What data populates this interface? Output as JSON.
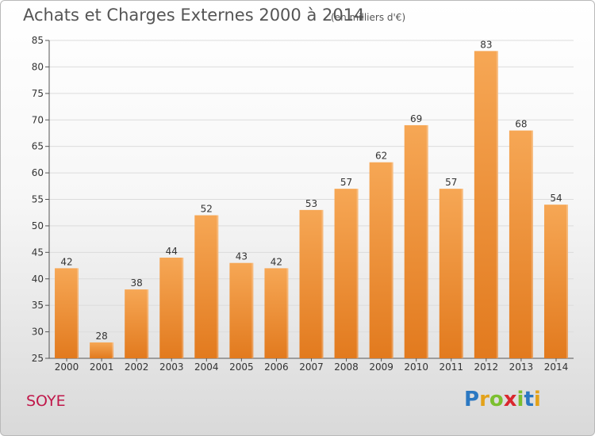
{
  "title": "Achats et Charges Externes 2000 à 2014",
  "subtitle": "(en milliers d'€)",
  "commune": "SOYE",
  "brand": {
    "letters": [
      "P",
      "r",
      "o",
      "x",
      "i",
      "t",
      "i"
    ],
    "colors": [
      "#2b78c2",
      "#e3a21a",
      "#7bbf2f",
      "#d9272e",
      "#7bbf2f",
      "#2b78c2",
      "#e3a21a"
    ]
  },
  "colors": {
    "bar_top": "#f6a755",
    "bar_bottom": "#e27a1e",
    "grid": "#dcdcdc",
    "axis": "#555555"
  },
  "chart_data": {
    "type": "bar",
    "categories": [
      "2000",
      "2001",
      "2002",
      "2003",
      "2004",
      "2005",
      "2006",
      "2007",
      "2008",
      "2009",
      "2010",
      "2011",
      "2012",
      "2013",
      "2014"
    ],
    "values": [
      42,
      28,
      38,
      44,
      52,
      43,
      42,
      53,
      57,
      62,
      69,
      57,
      83,
      68,
      54
    ],
    "title": "Achats et Charges Externes 2000 à 2014",
    "xlabel": "",
    "ylabel": "",
    "ylim": [
      25,
      85
    ],
    "yticks": [
      25,
      30,
      35,
      40,
      45,
      50,
      55,
      60,
      65,
      70,
      75,
      80,
      85
    ],
    "grid": true,
    "data_labels": true
  }
}
